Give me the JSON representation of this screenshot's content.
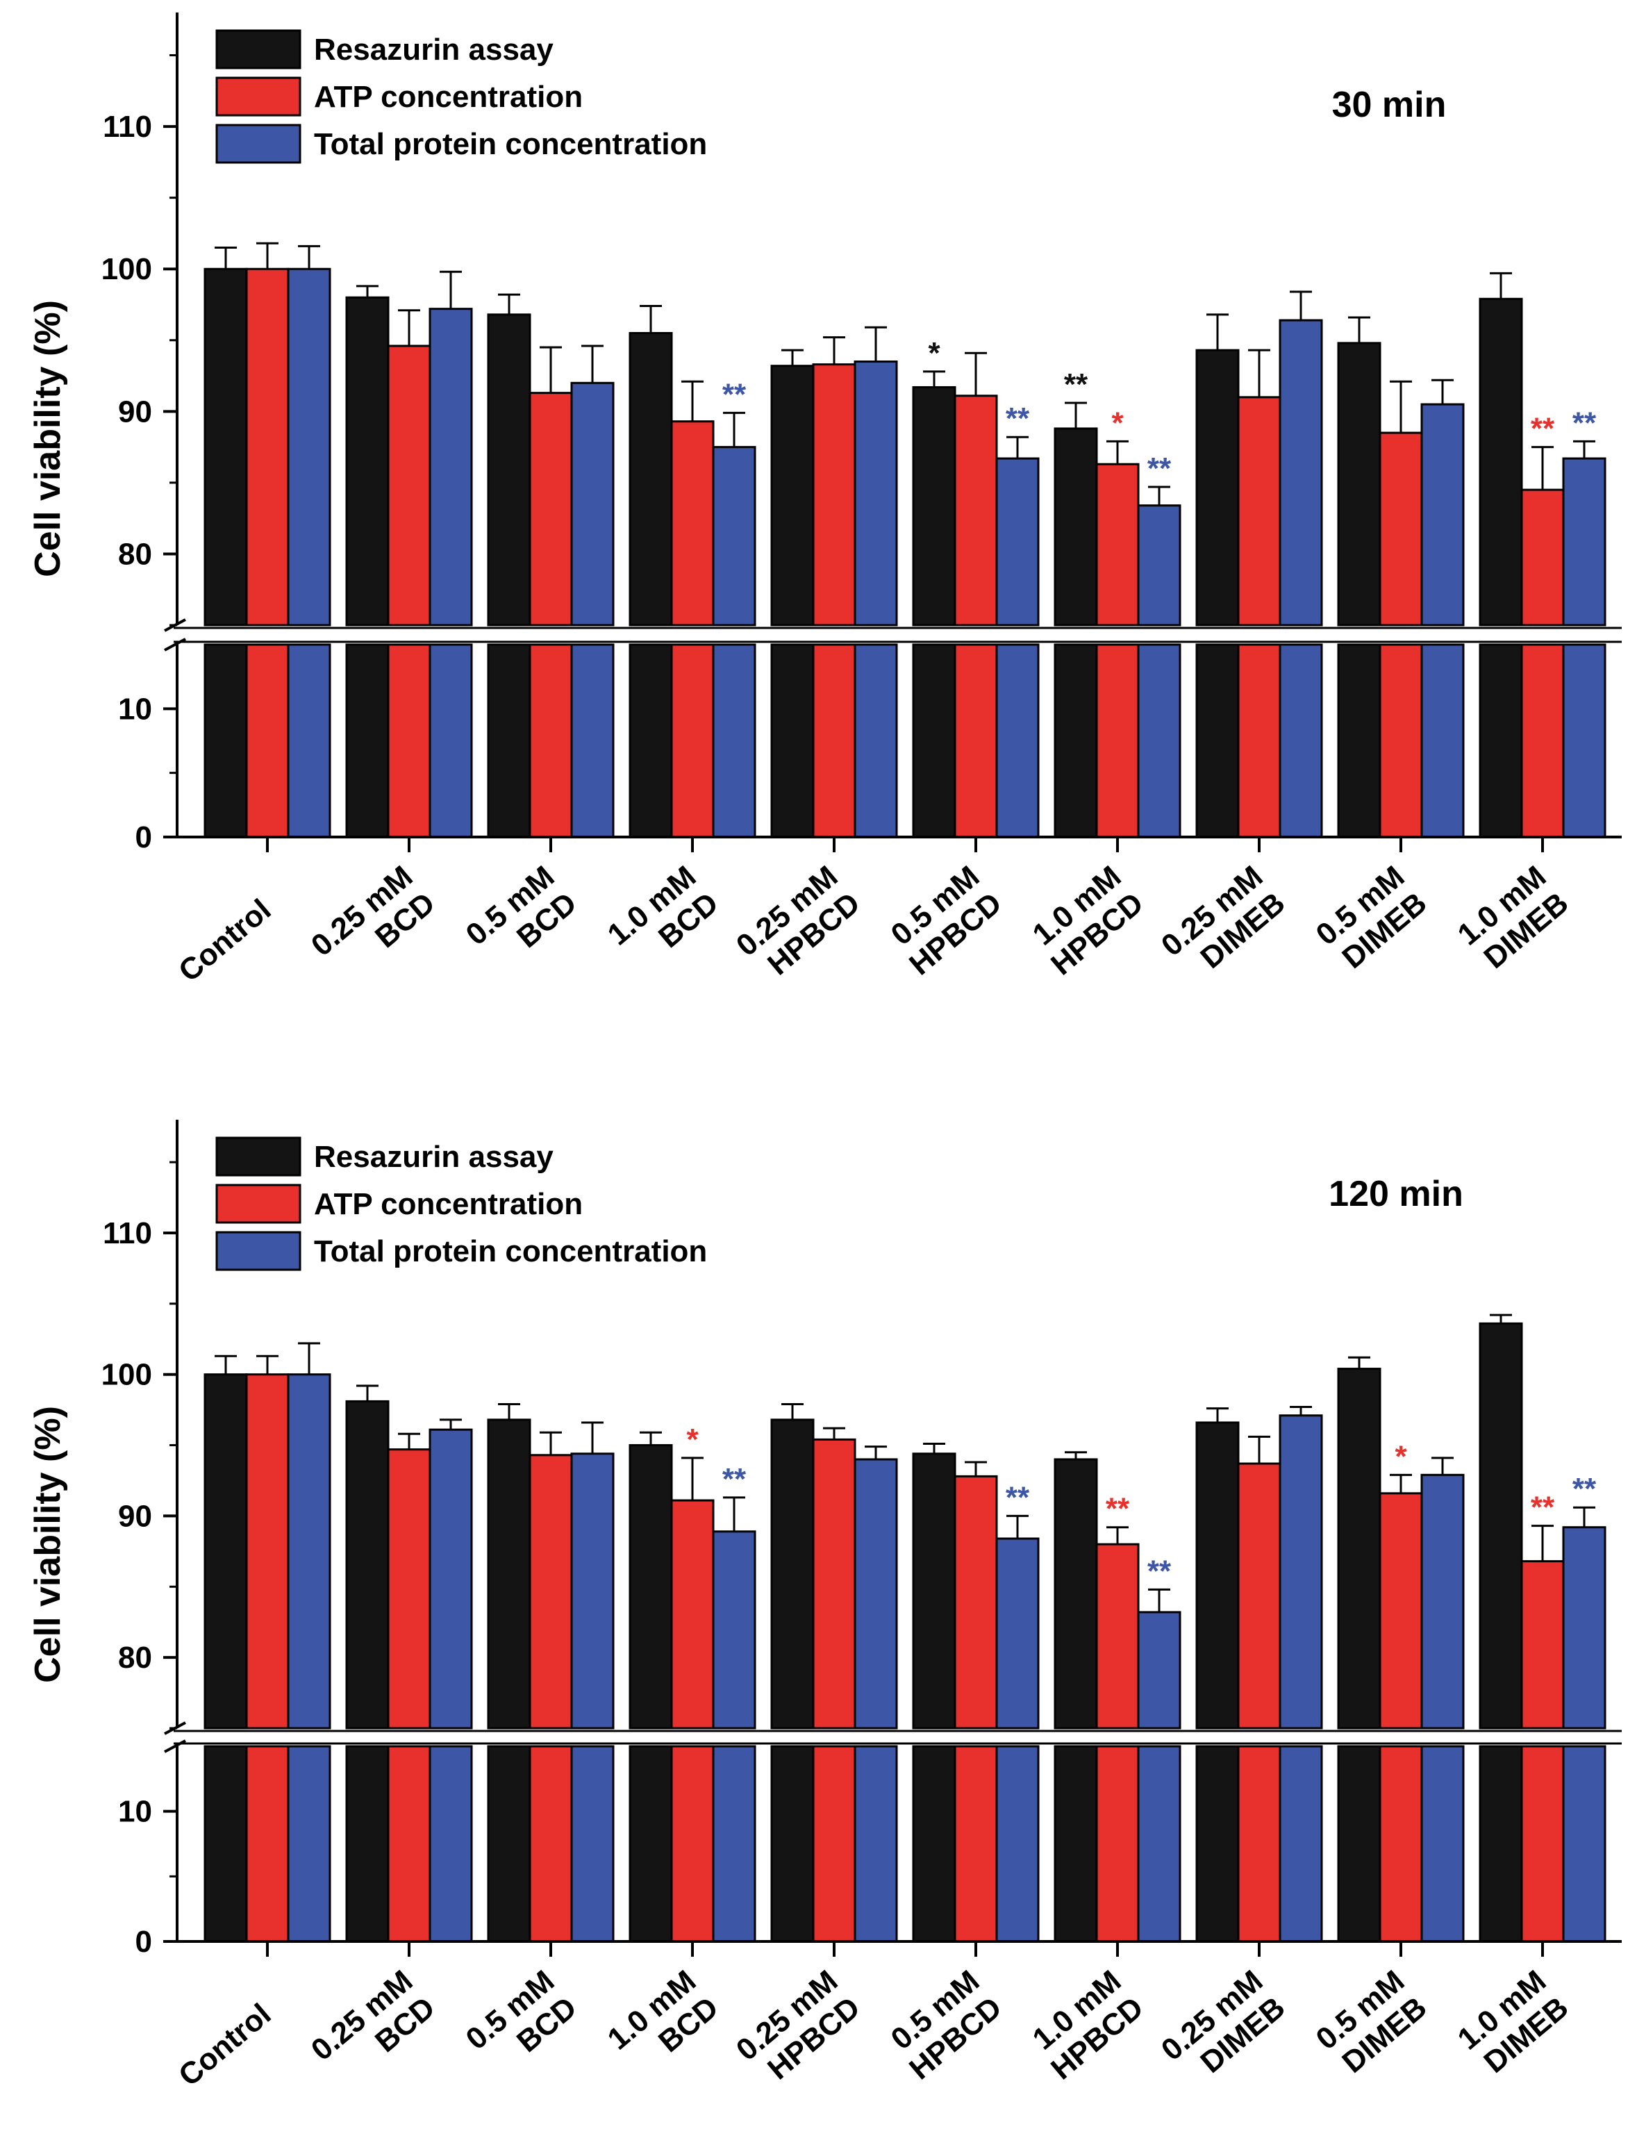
{
  "chart_data": [
    {
      "type": "bar",
      "title": "30 min",
      "xlabel": "",
      "ylabel": "Cell viability (%)",
      "axis_break": [
        15,
        75
      ],
      "ylim_upper": [
        75,
        118
      ],
      "ylim_lower": [
        0,
        15
      ],
      "yticks": [
        "0",
        "10",
        "80",
        "90",
        "100",
        "110"
      ],
      "categories": [
        [
          "Control"
        ],
        [
          "0.25 mM",
          "BCD"
        ],
        [
          "0.5 mM",
          "BCD"
        ],
        [
          "1.0 mM",
          "BCD"
        ],
        [
          "0.25 mM",
          "HPBCD"
        ],
        [
          "0.5 mM",
          "HPBCD"
        ],
        [
          "1.0 mM",
          "HPBCD"
        ],
        [
          "0.25 mM",
          "DIMEB"
        ],
        [
          "0.5 mM",
          "DIMEB"
        ],
        [
          "1.0 mM",
          "DIMEB"
        ]
      ],
      "series": [
        {
          "name": "Resazurin assay",
          "color": "#141414",
          "values": [
            100.0,
            98.0,
            96.8,
            95.5,
            93.2,
            91.7,
            88.8,
            94.3,
            94.8,
            97.9
          ],
          "errors": [
            1.5,
            0.8,
            1.4,
            1.9,
            1.1,
            1.1,
            1.8,
            2.5,
            1.8,
            1.8
          ],
          "sig": [
            "",
            "",
            "",
            "",
            "",
            "*",
            "**",
            "",
            "",
            ""
          ]
        },
        {
          "name": "ATP concentration",
          "color": "#e8312c",
          "values": [
            100.0,
            94.6,
            91.3,
            89.3,
            93.3,
            91.1,
            86.3,
            91.0,
            88.5,
            84.5
          ],
          "errors": [
            1.8,
            2.5,
            3.2,
            2.8,
            1.9,
            3.0,
            1.6,
            3.3,
            3.6,
            3.0
          ],
          "sig": [
            "",
            "",
            "",
            "",
            "",
            "",
            "*",
            "",
            "",
            "**"
          ]
        },
        {
          "name": "Total protein concentration",
          "color": "#3d56a6",
          "values": [
            100.0,
            97.2,
            92.0,
            87.5,
            93.5,
            86.7,
            83.4,
            96.4,
            90.5,
            86.7
          ],
          "errors": [
            1.6,
            2.6,
            2.6,
            2.4,
            2.4,
            1.5,
            1.3,
            2.0,
            1.7,
            1.2
          ],
          "sig": [
            "",
            "",
            "",
            "**",
            "",
            "**",
            "**",
            "",
            "",
            "**"
          ]
        }
      ]
    },
    {
      "type": "bar",
      "title": "120 min",
      "xlabel": "",
      "ylabel": "Cell viability (%)",
      "axis_break": [
        15,
        75
      ],
      "ylim_upper": [
        75,
        118
      ],
      "ylim_lower": [
        0,
        15
      ],
      "yticks": [
        "0",
        "10",
        "80",
        "90",
        "100",
        "110"
      ],
      "categories": [
        [
          "Control"
        ],
        [
          "0.25 mM",
          "BCD"
        ],
        [
          "0.5 mM",
          "BCD"
        ],
        [
          "1.0 mM",
          "BCD"
        ],
        [
          "0.25 mM",
          "HPBCD"
        ],
        [
          "0.5 mM",
          "HPBCD"
        ],
        [
          "1.0 mM",
          "HPBCD"
        ],
        [
          "0.25 mM",
          "DIMEB"
        ],
        [
          "0.5 mM",
          "DIMEB"
        ],
        [
          "1.0 mM",
          "DIMEB"
        ]
      ],
      "series": [
        {
          "name": "Resazurin assay",
          "color": "#141414",
          "values": [
            100.0,
            98.1,
            96.8,
            95.0,
            96.8,
            94.4,
            94.0,
            96.6,
            100.4,
            103.6
          ],
          "errors": [
            1.3,
            1.1,
            1.1,
            0.9,
            1.1,
            0.7,
            0.5,
            1.0,
            0.8,
            0.6
          ],
          "sig": [
            "",
            "",
            "",
            "",
            "",
            "",
            "",
            "",
            "",
            ""
          ]
        },
        {
          "name": "ATP concentration",
          "color": "#e8312c",
          "values": [
            100.0,
            94.7,
            94.3,
            91.1,
            95.4,
            92.8,
            88.0,
            93.7,
            91.6,
            86.8
          ],
          "errors": [
            1.3,
            1.1,
            1.6,
            3.0,
            0.8,
            1.0,
            1.2,
            1.9,
            1.3,
            2.5
          ],
          "sig": [
            "",
            "",
            "",
            "*",
            "",
            "",
            "**",
            "",
            "*",
            "**"
          ]
        },
        {
          "name": "Total protein concentration",
          "color": "#3d56a6",
          "values": [
            100.0,
            96.1,
            94.4,
            88.9,
            94.0,
            88.4,
            83.2,
            97.1,
            92.9,
            89.2
          ],
          "errors": [
            2.2,
            0.7,
            2.2,
            2.4,
            0.9,
            1.6,
            1.6,
            0.6,
            1.2,
            1.4
          ],
          "sig": [
            "",
            "",
            "",
            "**",
            "",
            "**",
            "**",
            "",
            "",
            "**"
          ]
        }
      ]
    }
  ]
}
